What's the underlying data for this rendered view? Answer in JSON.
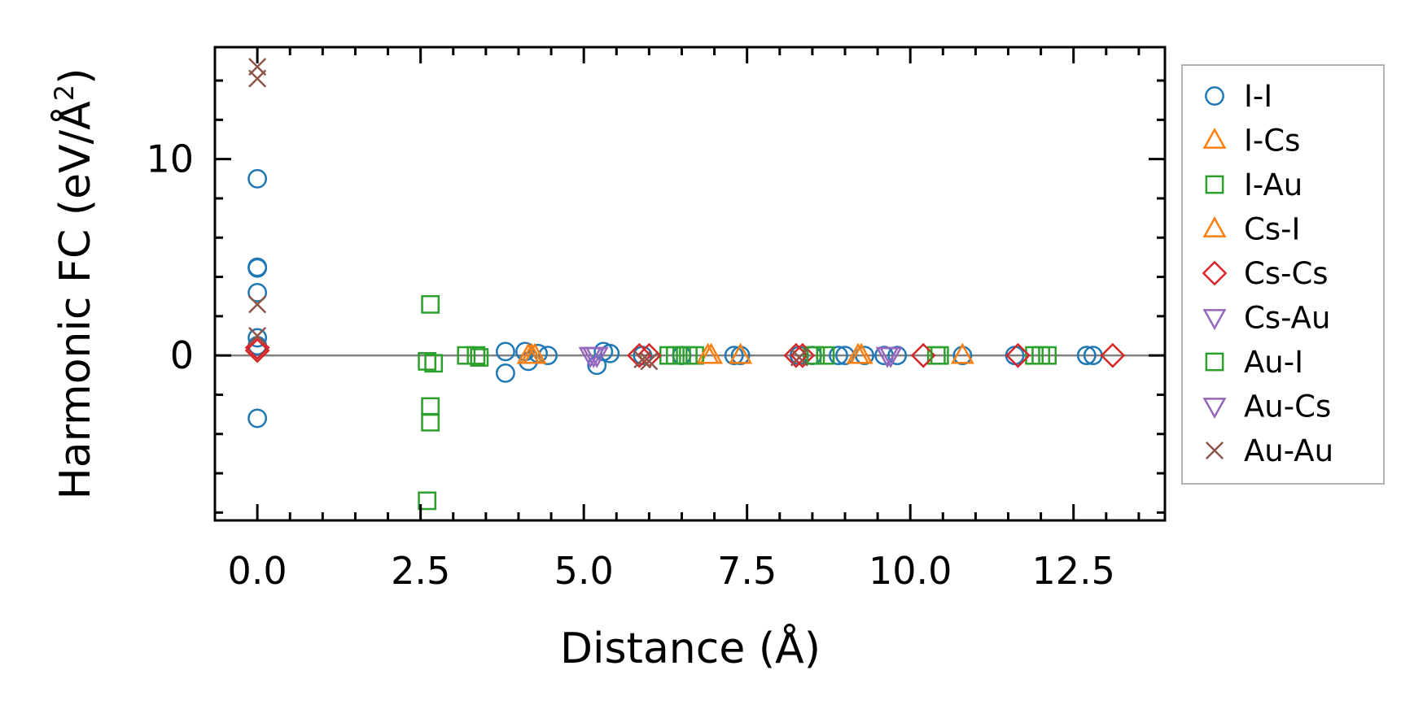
{
  "chart_data": {
    "type": "scatter",
    "xlabel": "Distance (Å)",
    "ylabel_main": "Harmonic FC (eV/Å",
    "ylabel_sup": "2",
    "ylabel_close": ")",
    "xlim": [
      -0.65,
      13.9
    ],
    "ylim": [
      -8.4,
      15.7
    ],
    "x_ticks": [
      0.0,
      2.5,
      5.0,
      7.5,
      10.0,
      12.5
    ],
    "x_tick_labels": [
      "0.0",
      "2.5",
      "5.0",
      "7.5",
      "10.0",
      "12.5"
    ],
    "y_ticks": [
      0,
      10
    ],
    "y_tick_labels": [
      "0",
      "10"
    ],
    "zero_line": true,
    "grid": false,
    "legend_position": "outside-right",
    "series": [
      {
        "name": "I-I",
        "marker": "circle",
        "color": "#1f77b4",
        "points": [
          [
            0,
            9.0
          ],
          [
            0,
            4.5
          ],
          [
            0,
            4.45
          ],
          [
            0,
            3.2
          ],
          [
            0,
            0.9
          ],
          [
            0,
            0.5
          ],
          [
            0,
            -3.2
          ],
          [
            3.8,
            0.2
          ],
          [
            3.8,
            -0.9
          ],
          [
            4.1,
            0.2
          ],
          [
            4.15,
            -0.3
          ],
          [
            4.3,
            0.1
          ],
          [
            4.45,
            0.0
          ],
          [
            5.2,
            -0.5
          ],
          [
            5.3,
            0.2
          ],
          [
            5.4,
            0.1
          ],
          [
            5.9,
            0.0
          ],
          [
            6.5,
            0.0
          ],
          [
            7.3,
            0.0
          ],
          [
            7.4,
            0.0
          ],
          [
            8.3,
            0.0
          ],
          [
            8.5,
            0.0
          ],
          [
            8.9,
            0.0
          ],
          [
            9.0,
            0.0
          ],
          [
            9.3,
            0.0
          ],
          [
            9.6,
            0.0
          ],
          [
            9.8,
            0.0
          ],
          [
            10.8,
            0.0
          ],
          [
            11.6,
            0.0
          ],
          [
            12.7,
            0.0
          ],
          [
            12.8,
            0.0
          ]
        ]
      },
      {
        "name": "I-Cs",
        "marker": "triangle-up",
        "color": "#ff7f0e",
        "points": [
          [
            4.15,
            0.0
          ],
          [
            4.25,
            0.0
          ],
          [
            6.95,
            0.0
          ],
          [
            7.4,
            0.0
          ],
          [
            9.2,
            0.0
          ]
        ]
      },
      {
        "name": "I-Au",
        "marker": "square",
        "color": "#2ca02c",
        "points": [
          [
            2.6,
            -7.4
          ],
          [
            2.6,
            -0.3
          ],
          [
            2.65,
            2.6
          ],
          [
            2.65,
            -2.6
          ],
          [
            2.65,
            -3.4
          ],
          [
            2.7,
            -0.4
          ],
          [
            3.2,
            0.0
          ],
          [
            3.4,
            -0.1
          ],
          [
            6.3,
            0.0
          ],
          [
            6.5,
            0.0
          ],
          [
            6.7,
            0.0
          ],
          [
            8.5,
            0.0
          ],
          [
            8.7,
            0.0
          ],
          [
            10.4,
            0.0
          ],
          [
            11.9,
            0.0
          ],
          [
            12.1,
            0.0
          ]
        ]
      },
      {
        "name": "Cs-I",
        "marker": "triangle-up",
        "color": "#ff7f0e",
        "points": [
          [
            4.2,
            0.0
          ],
          [
            6.9,
            0.0
          ],
          [
            9.25,
            0.0
          ],
          [
            10.8,
            0.0
          ]
        ]
      },
      {
        "name": "Cs-Cs",
        "marker": "diamond",
        "color": "#d62728",
        "points": [
          [
            0,
            0.4
          ],
          [
            0,
            0.25
          ],
          [
            5.85,
            0.0
          ],
          [
            6.0,
            0.0
          ],
          [
            8.25,
            0.0
          ],
          [
            8.35,
            0.0
          ],
          [
            10.2,
            0.0
          ],
          [
            11.65,
            0.0
          ],
          [
            13.1,
            0.0
          ]
        ]
      },
      {
        "name": "Cs-Au",
        "marker": "triangle-down",
        "color": "#9467bd",
        "points": [
          [
            5.1,
            0.0
          ],
          [
            5.2,
            0.0
          ],
          [
            9.7,
            0.0
          ]
        ]
      },
      {
        "name": "Au-I",
        "marker": "square",
        "color": "#2ca02c",
        "points": [
          [
            3.35,
            0.0
          ],
          [
            6.4,
            0.0
          ],
          [
            6.6,
            0.0
          ],
          [
            8.55,
            0.0
          ],
          [
            10.45,
            0.0
          ],
          [
            12.0,
            0.0
          ]
        ]
      },
      {
        "name": "Au-Cs",
        "marker": "triangle-down",
        "color": "#9467bd",
        "points": [
          [
            5.15,
            0.0
          ],
          [
            9.65,
            0.0
          ]
        ]
      },
      {
        "name": "Au-Au",
        "marker": "x",
        "color": "#8c564b",
        "points": [
          [
            0,
            14.7
          ],
          [
            0,
            14.1
          ],
          [
            0,
            2.6
          ],
          [
            0,
            1.0
          ],
          [
            5.9,
            -0.2
          ],
          [
            6.0,
            -0.3
          ],
          [
            8.3,
            -0.1
          ]
        ]
      }
    ]
  }
}
